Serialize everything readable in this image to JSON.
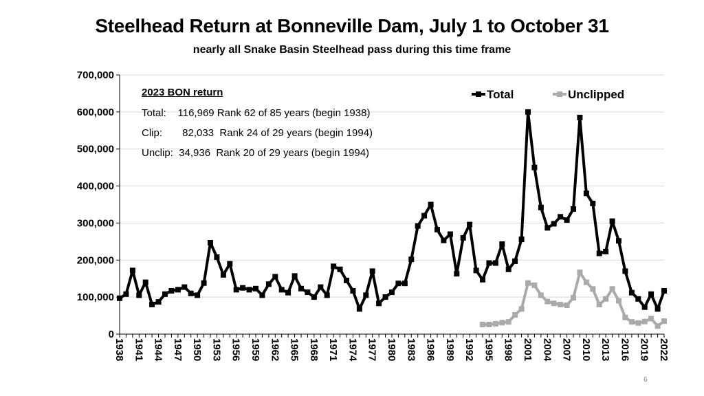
{
  "chart_data": {
    "type": "line",
    "title": "Steelhead Return at Bonneville Dam, July 1 to October 31",
    "subtitle": "nearly all Snake Basin Steelhead pass during this time frame",
    "xlabel": "",
    "ylabel": "",
    "ylim": [
      0,
      700000
    ],
    "yticks": [
      0,
      100000,
      200000,
      300000,
      400000,
      500000,
      600000,
      700000
    ],
    "ytick_labels": [
      "0",
      "100,000",
      "200,000",
      "300,000",
      "400,000",
      "500,000",
      "600,000",
      "700,000"
    ],
    "xlim": [
      1938,
      2022
    ],
    "xticks": [
      1938,
      1941,
      1944,
      1947,
      1950,
      1953,
      1956,
      1959,
      1962,
      1965,
      1968,
      1971,
      1974,
      1977,
      1980,
      1983,
      1986,
      1989,
      1992,
      1995,
      1998,
      2001,
      2004,
      2007,
      2010,
      2013,
      2016,
      2019,
      2022
    ],
    "xtick_labels": [
      "1938",
      "1941",
      "1944",
      "1947",
      "1950",
      "1953",
      "1956",
      "1959",
      "1962",
      "1965",
      "1968",
      "1971",
      "1974",
      "1977",
      "1980",
      "1983",
      "1986",
      "1989",
      "1992",
      "1995",
      "1998",
      "2001",
      "2004",
      "2007",
      "2010",
      "2013",
      "2016",
      "2019",
      "2022"
    ],
    "legend_position": "top-right",
    "series": [
      {
        "name": "Total",
        "color": "#000000",
        "x_start": 1938,
        "values": [
          97000,
          108000,
          172000,
          105000,
          140000,
          80000,
          87000,
          108000,
          117000,
          120000,
          127000,
          110000,
          105000,
          138000,
          247000,
          208000,
          160000,
          190000,
          120000,
          125000,
          120000,
          123000,
          105000,
          135000,
          155000,
          120000,
          112000,
          157000,
          123000,
          113000,
          100000,
          127000,
          105000,
          183000,
          175000,
          145000,
          117000,
          68000,
          105000,
          170000,
          83000,
          100000,
          113000,
          137000,
          137000,
          202000,
          292000,
          320000,
          350000,
          282000,
          253000,
          270000,
          163000,
          260000,
          296000,
          172000,
          147000,
          192000,
          192000,
          243000,
          175000,
          197000,
          256000,
          600000,
          450000,
          342000,
          287000,
          298000,
          317000,
          308000,
          338000,
          585000,
          380000,
          353000,
          218000,
          223000,
          305000,
          252000,
          170000,
          112000,
          95000,
          73000,
          108000,
          68000,
          117000
        ]
      },
      {
        "name": "Unclipped",
        "color": "#aaaaaa",
        "x_start": 1994,
        "values": [
          26000,
          26000,
          28000,
          31000,
          33000,
          52000,
          68000,
          138000,
          132000,
          105000,
          88000,
          83000,
          80000,
          78000,
          98000,
          167000,
          140000,
          122000,
          80000,
          95000,
          122000,
          90000,
          45000,
          33000,
          30000,
          34000,
          42000,
          22000,
          35000
        ]
      }
    ]
  },
  "info_box": {
    "heading": "2023 BON return",
    "lines": [
      "Total:    116,969 Rank 62 of 85 years (begin 1938)",
      "Clip:       82,033  Rank 24 of 29 years (begin 1994)",
      "Unclip:  34,936  Rank 20 of 29 years (begin 1994)"
    ]
  },
  "slide_number": "6"
}
